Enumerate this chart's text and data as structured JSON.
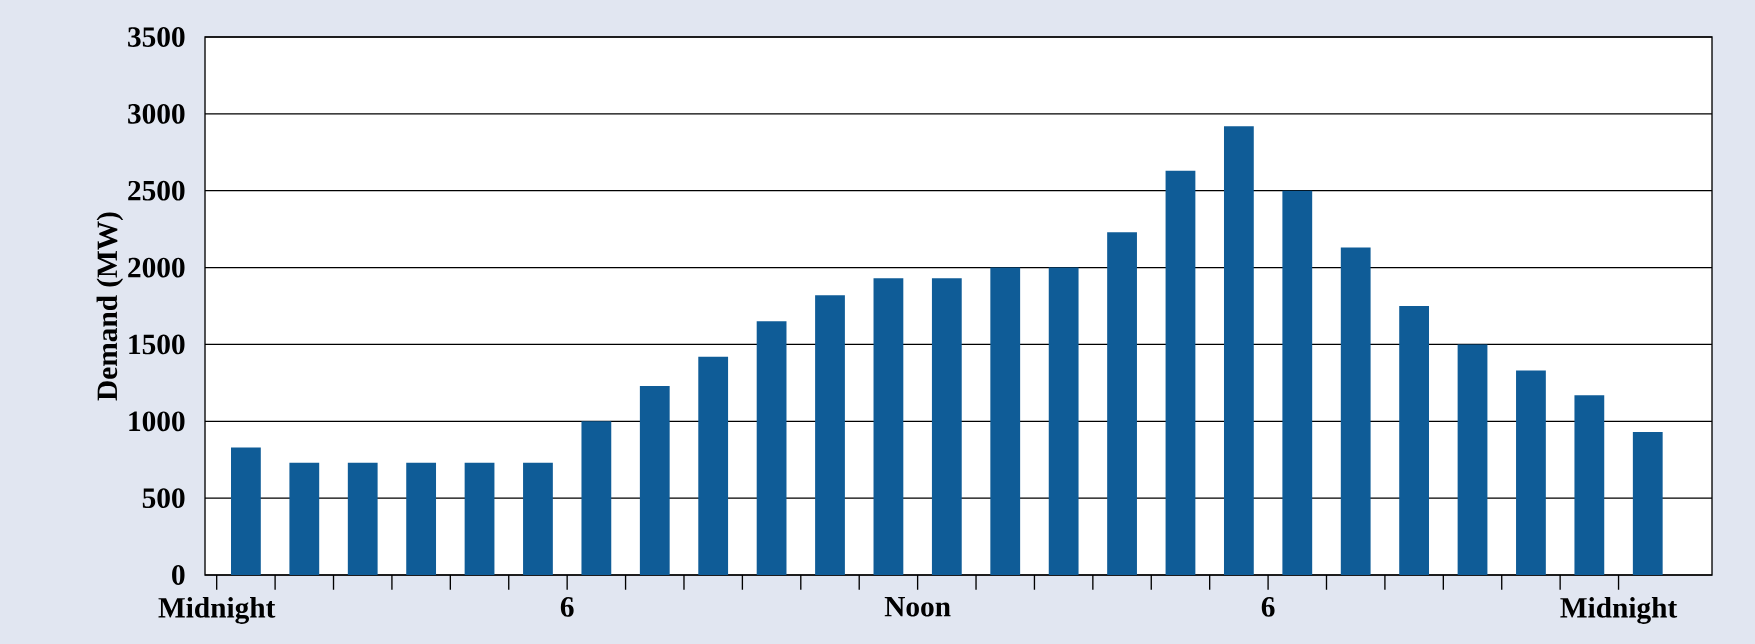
{
  "chart_data": {
    "type": "bar",
    "ylabel": "Demand (MW)",
    "categories": [
      "Midnight",
      null,
      null,
      null,
      null,
      null,
      "6",
      null,
      null,
      null,
      null,
      null,
      "Noon",
      null,
      null,
      null,
      null,
      null,
      "6",
      null,
      null,
      null,
      null,
      null,
      "Midnight"
    ],
    "values": [
      830,
      730,
      730,
      730,
      730,
      730,
      1000,
      1230,
      1420,
      1650,
      1820,
      1930,
      1930,
      2000,
      2000,
      2230,
      2630,
      2920,
      2500,
      2130,
      1750,
      1500,
      1330,
      1170,
      930
    ],
    "color": "#0f5c97",
    "ylim": [
      0,
      3500
    ],
    "yticks": [
      0,
      500,
      1000,
      1500,
      2000,
      2500,
      3000,
      3500
    ],
    "grid": "y"
  }
}
